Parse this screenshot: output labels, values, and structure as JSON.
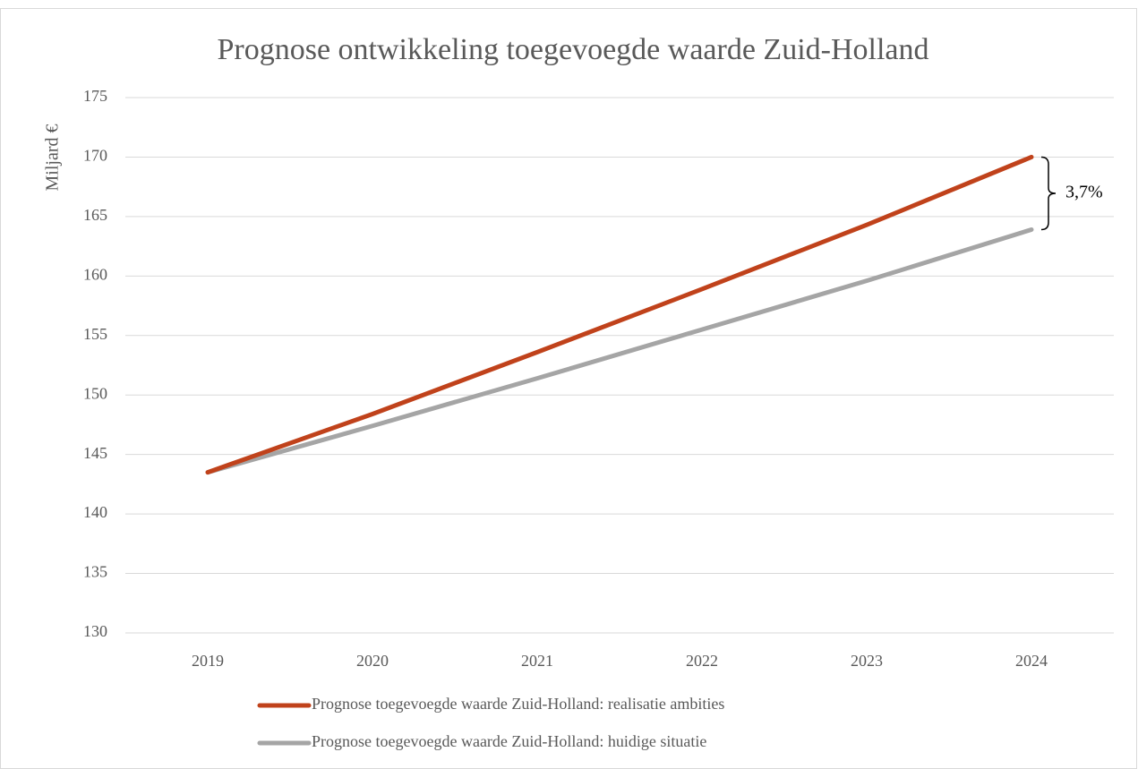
{
  "chart_data": {
    "type": "line",
    "title": "Prognose ontwikkeling toegevoegde waarde Zuid-Holland",
    "y_label": "Miljard €",
    "categories": [
      "2019",
      "2020",
      "2021",
      "2022",
      "2023",
      "2024"
    ],
    "series": [
      {
        "name": "Prognose toegevoegde waarde Zuid-Holland: realisatie ambities",
        "color": "#c0421b",
        "values": [
          143.5,
          148.4,
          153.6,
          158.9,
          164.3,
          170.0
        ]
      },
      {
        "name": "Prognose toegevoegde waarde Zuid-Holland: huidige situatie",
        "color": "#a5a5a5",
        "values": [
          143.5,
          147.4,
          151.4,
          155.5,
          159.6,
          163.9
        ]
      }
    ],
    "ylim": [
      130,
      175
    ],
    "yticks": [
      130,
      135,
      140,
      145,
      150,
      155,
      160,
      165,
      170,
      175
    ],
    "grid": true,
    "legend": "bottom",
    "annotation": "3,7%"
  }
}
